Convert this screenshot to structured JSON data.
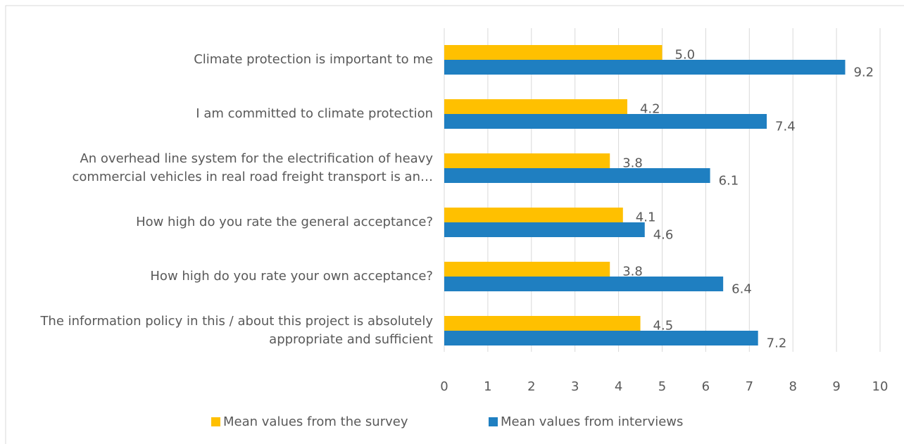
{
  "chart_data": {
    "type": "bar",
    "orientation": "horizontal",
    "categories": [
      "Climate protection is important to me",
      "I am committed to climate protection",
      "An overhead line system for the electrification of heavy commercial vehicles in real road freight transport is an…",
      "How high do you rate the general acceptance?",
      "How high do you rate your own acceptance?",
      "The information policy in this / about this project is absolutely appropriate and sufficient"
    ],
    "series": [
      {
        "name": "Mean values from the survey",
        "color": "#ffc000",
        "values": [
          5.0,
          4.2,
          3.8,
          4.1,
          3.8,
          4.5
        ],
        "value_labels": [
          "5.0",
          "4.2",
          "3.8",
          "4.1",
          "3.8",
          "4.5"
        ]
      },
      {
        "name": "Mean values from interviews",
        "color": "#1f7fc1",
        "values": [
          9.2,
          7.4,
          6.1,
          4.6,
          6.4,
          7.2
        ],
        "value_labels": [
          "9.2",
          "7.4",
          "6.1",
          "4.6",
          "6.4",
          "7.2"
        ]
      }
    ],
    "xlim": [
      0,
      10
    ],
    "xticks": [
      0,
      1,
      2,
      3,
      4,
      5,
      6,
      7,
      8,
      9,
      10
    ],
    "grid": true,
    "legend": "bottom"
  }
}
